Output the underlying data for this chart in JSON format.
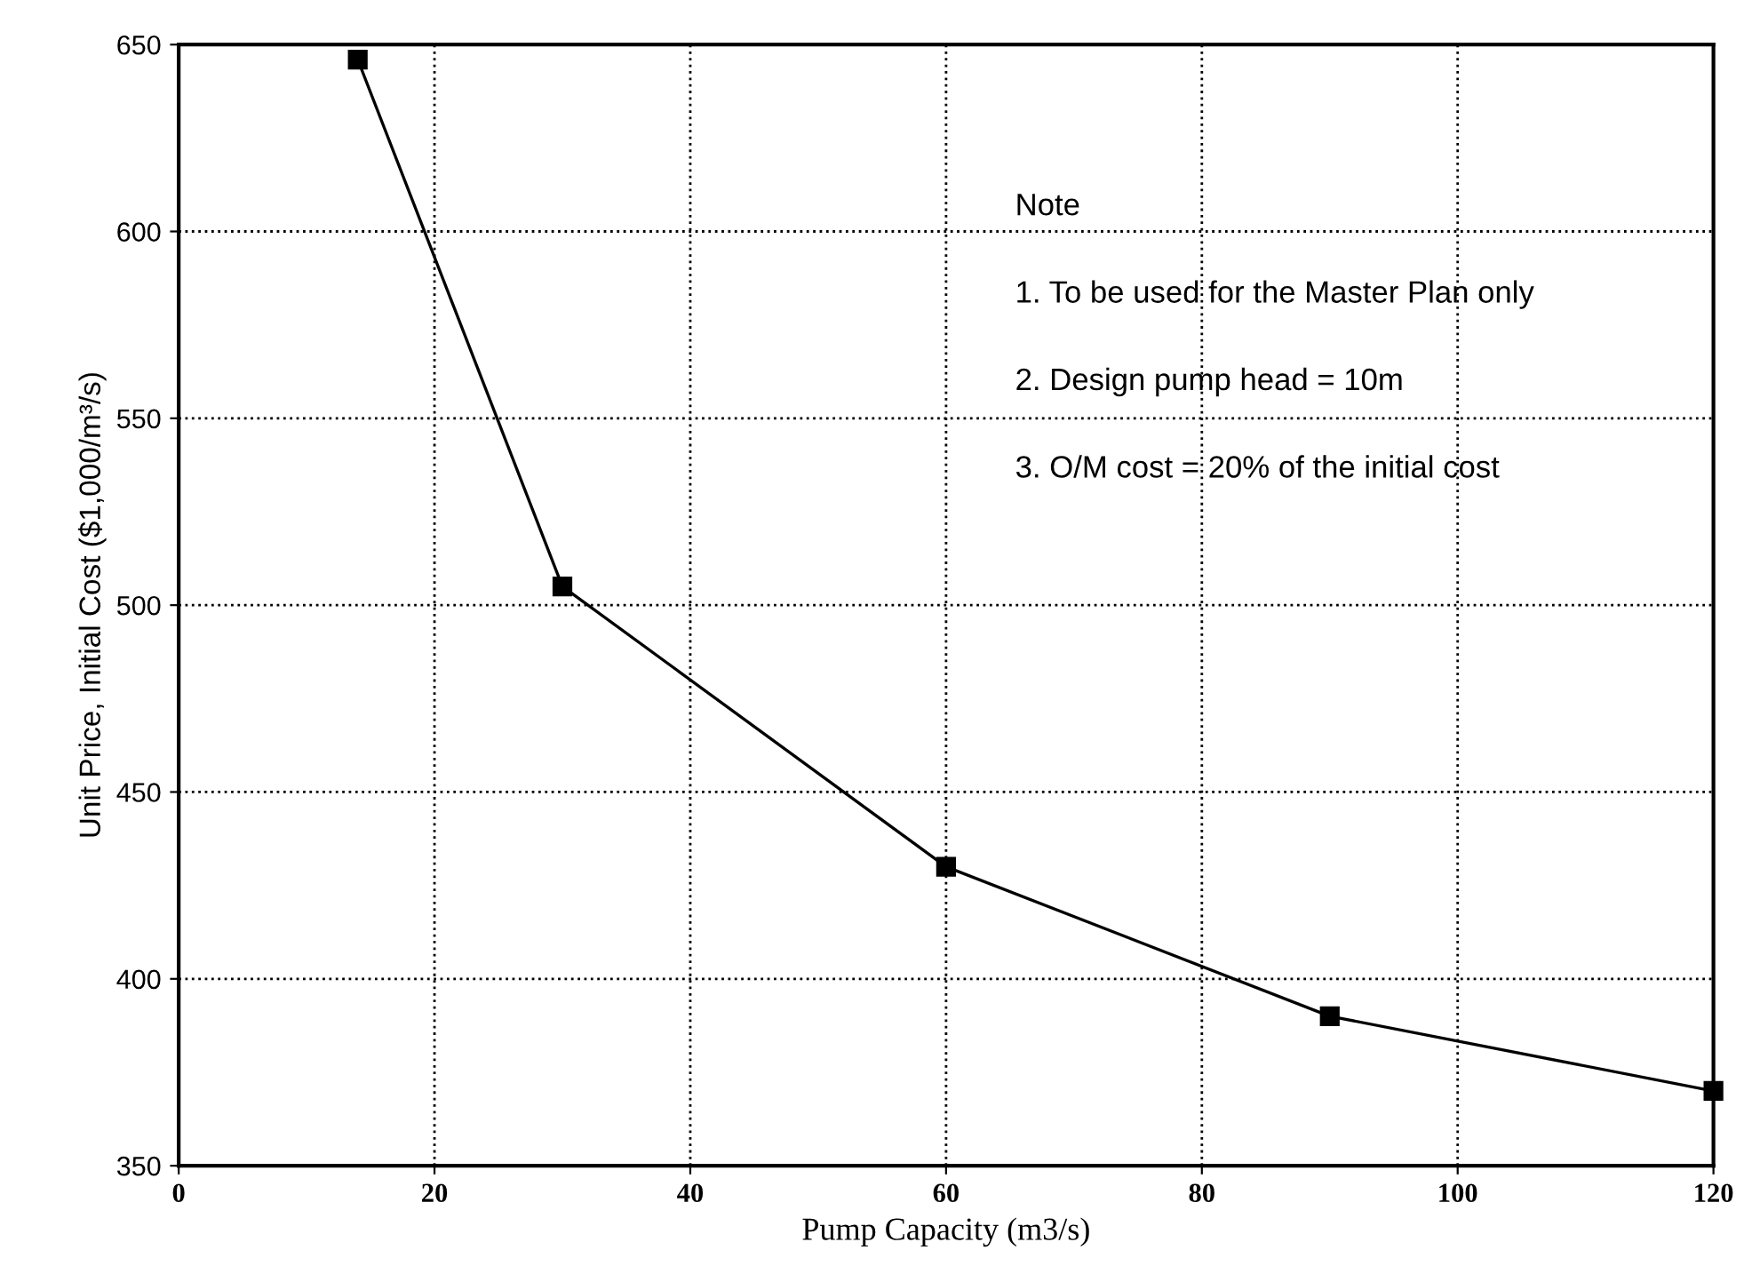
{
  "chart_data": {
    "type": "line",
    "xlabel": "Pump Capacity (m3/s)",
    "ylabel": "Unit Price, Initial Cost ($1,000/m³/s)",
    "x": [
      14,
      30,
      60,
      90,
      120
    ],
    "series": [
      {
        "color": "#000000",
        "values": [
          646,
          505,
          430,
          390,
          370
        ]
      }
    ],
    "xlim": [
      0,
      120
    ],
    "xticks": [
      0,
      20,
      40,
      60,
      80,
      100,
      120
    ],
    "ylim": [
      350,
      650
    ],
    "yticks": [
      350,
      400,
      450,
      500,
      550,
      600,
      650
    ],
    "grid": true,
    "marker": "square",
    "line_style": "solid",
    "annotations": [
      "Note",
      "1. To be used for the Master Plan only",
      "2. Design pump head = 10m",
      "3. O/M cost = 20% of the initial cost"
    ]
  }
}
